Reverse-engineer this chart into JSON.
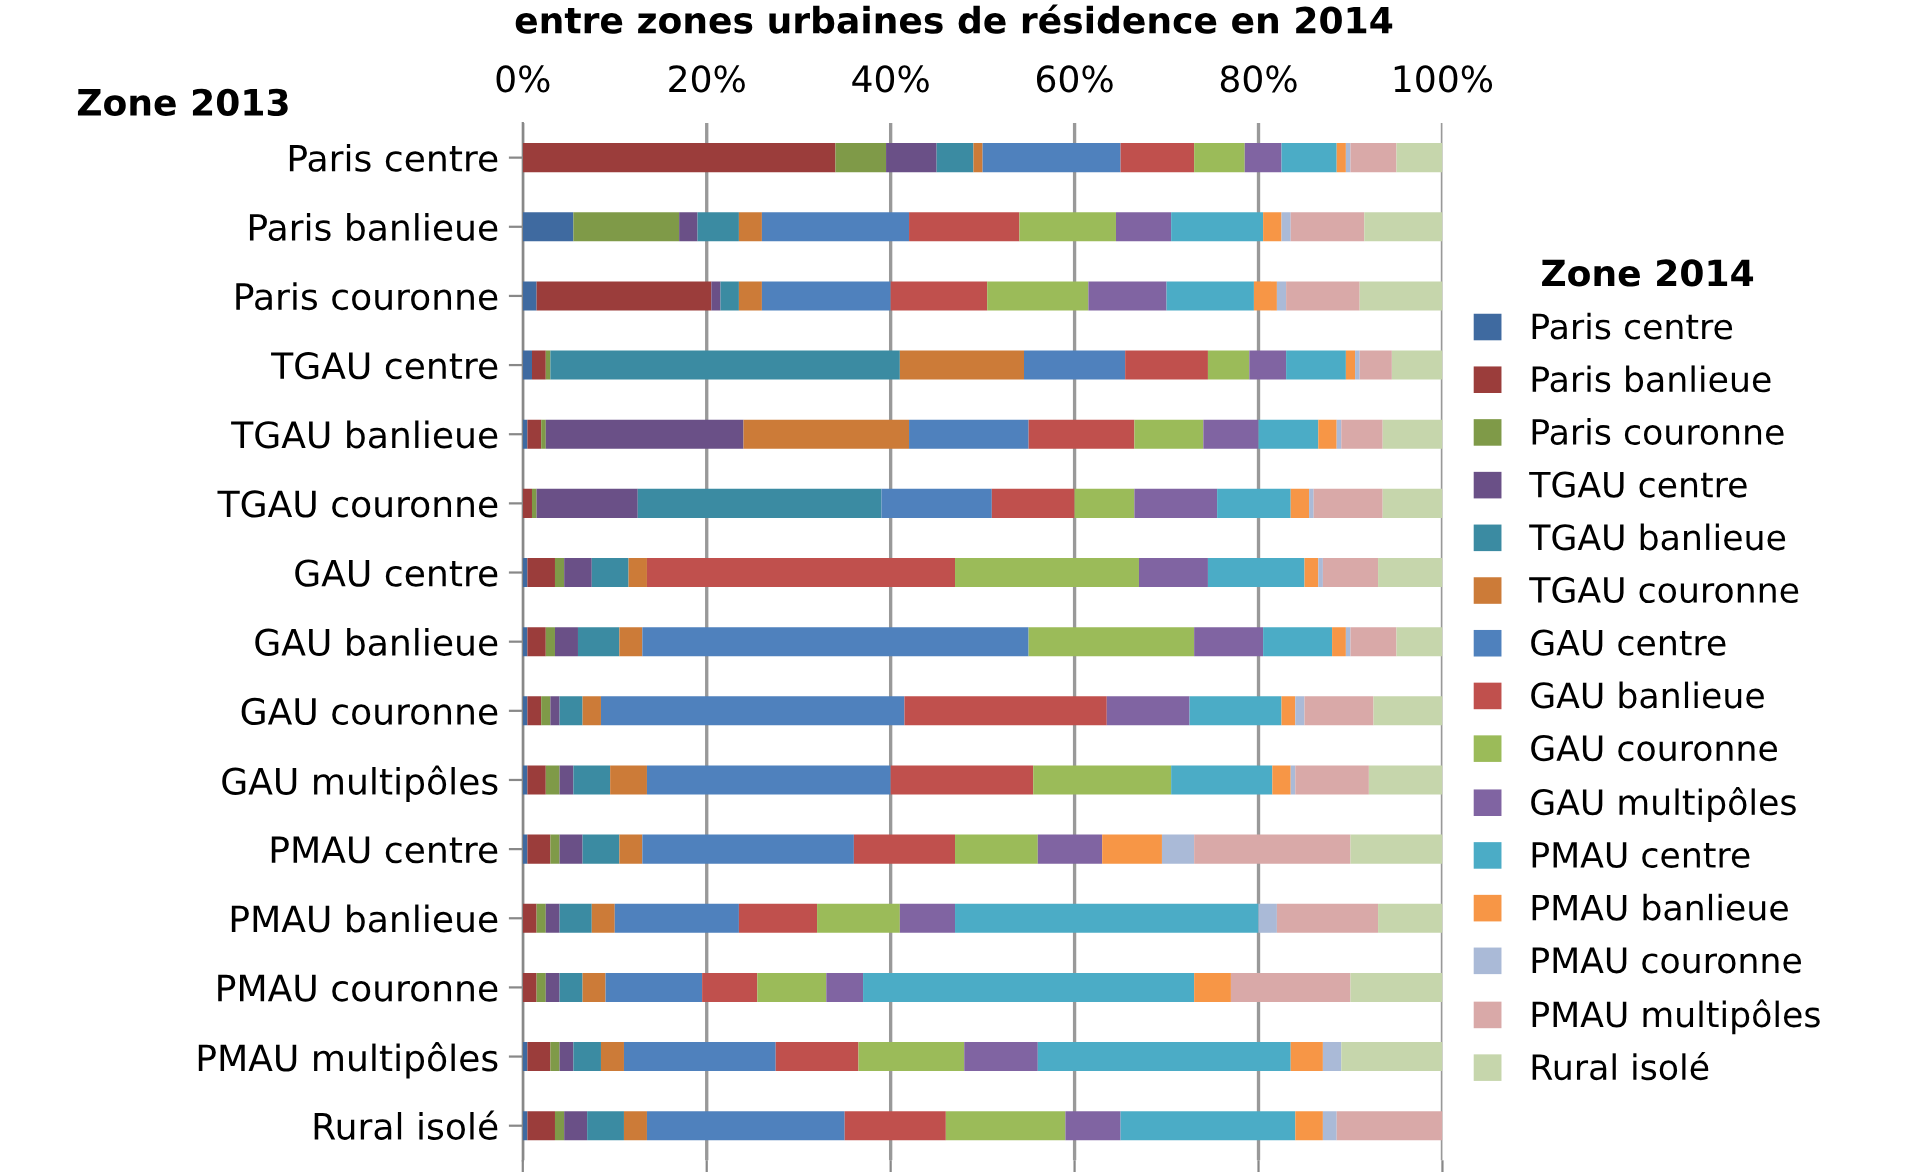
{
  "chart_data": {
    "type": "bar",
    "orientation": "horizontal",
    "stacked": true,
    "title": "entre zones urbaines de résidence en 2014",
    "ylabel": "Zone 2013",
    "legend_title": "Zone 2014",
    "legend": "right",
    "grid": "x",
    "categories": [
      "Paris centre",
      "Paris banlieue",
      "Paris couronne",
      "TGAU centre",
      "TGAU banlieue",
      "TGAU couronne",
      "GAU centre",
      "GAU banlieue",
      "GAU couronne",
      "GAU multipôles",
      "PMAU centre",
      "PMAU banlieue",
      "PMAU couronne",
      "PMAU multipôles",
      "Rural isolé"
    ],
    "xlim": [
      0,
      100
    ],
    "xticks": [
      {
        "value": 0,
        "label": "0%"
      },
      {
        "value": 20,
        "label": "20%"
      },
      {
        "value": 40,
        "label": "40%"
      },
      {
        "value": 60,
        "label": "60%"
      },
      {
        "value": 80,
        "label": "80%"
      },
      {
        "value": 100,
        "label": "100%"
      }
    ],
    "series": [
      {
        "name": "Paris centre",
        "color": "#3f6aa0",
        "values": [
          0,
          5.5,
          1.5,
          1,
          0.5,
          0,
          0.5,
          0.5,
          0.5,
          0.5,
          0.5,
          0,
          0,
          0.5,
          0.5
        ]
      },
      {
        "name": "Paris banlieue",
        "color": "#9b3d3b",
        "values": [
          34,
          0,
          19,
          1.5,
          1.5,
          1,
          3,
          2,
          1.5,
          2,
          2.5,
          1.5,
          1.5,
          2.5,
          3
        ]
      },
      {
        "name": "Paris couronne",
        "color": "#7f9a48",
        "values": [
          5.5,
          11.5,
          0,
          0.5,
          0.5,
          0.5,
          1,
          1,
          1,
          1.5,
          1,
          1,
          1,
          1,
          1
        ]
      },
      {
        "name": "TGAU centre",
        "color": "#6a5087",
        "values": [
          5.5,
          2,
          1,
          0,
          21.5,
          11,
          3,
          2.5,
          1,
          1.5,
          2.5,
          1.5,
          1.5,
          1.5,
          2.5
        ]
      },
      {
        "name": "TGAU banlieue",
        "color": "#3b8ba2",
        "values": [
          4,
          4.5,
          2,
          38,
          0,
          26.5,
          4,
          4.5,
          2.5,
          4,
          4,
          3.5,
          2.5,
          3,
          4
        ]
      },
      {
        "name": "TGAU couronne",
        "color": "#cc7b38",
        "values": [
          1,
          2.5,
          2.5,
          13.5,
          18,
          0,
          2,
          2.5,
          2,
          4,
          2.5,
          2.5,
          2.5,
          2.5,
          2.5
        ]
      },
      {
        "name": "GAU centre",
        "color": "#4f81bd",
        "values": [
          15,
          16,
          14,
          11,
          13,
          12,
          0,
          42,
          33,
          26.5,
          23,
          13.5,
          10.5,
          16.5,
          21.5
        ]
      },
      {
        "name": "GAU banlieue",
        "color": "#c0504d",
        "values": [
          8,
          12,
          10.5,
          9,
          11.5,
          9,
          33.5,
          0,
          22,
          15.5,
          11,
          8.5,
          6,
          9,
          11
        ]
      },
      {
        "name": "GAU couronne",
        "color": "#9bbb59",
        "values": [
          5.5,
          10.5,
          11,
          4.5,
          7.5,
          6.5,
          20,
          18,
          0,
          15,
          9,
          9,
          7.5,
          11.5,
          13
        ]
      },
      {
        "name": "GAU multipôles",
        "color": "#8064a2",
        "values": [
          4,
          6,
          8.5,
          4,
          6,
          9,
          7.5,
          7.5,
          9,
          0,
          7,
          6,
          4,
          8,
          6
        ]
      },
      {
        "name": "PMAU centre",
        "color": "#4bacc6",
        "values": [
          6,
          10,
          9.5,
          6.5,
          6.5,
          8,
          10.5,
          7.5,
          10,
          11,
          0,
          33,
          36,
          27.5,
          19
        ]
      },
      {
        "name": "PMAU banlieue",
        "color": "#f79646",
        "values": [
          1,
          2,
          2.5,
          1,
          2,
          2,
          1.5,
          1.5,
          1.5,
          2,
          6.5,
          0,
          4,
          3.5,
          3
        ]
      },
      {
        "name": "PMAU couronne",
        "color": "#aabad7",
        "values": [
          0.5,
          1,
          1,
          0.5,
          0.5,
          0.5,
          0.5,
          0.5,
          1,
          0.5,
          3.5,
          2,
          0,
          2,
          1.5
        ]
      },
      {
        "name": "PMAU multipôles",
        "color": "#d9a9a8",
        "values": [
          5,
          8,
          8,
          3.5,
          4.5,
          7.5,
          6,
          5,
          7.5,
          8,
          17,
          11,
          13,
          0,
          11.5
        ]
      },
      {
        "name": "Rural isolé",
        "color": "#c6d6ac",
        "values": [
          5,
          8.5,
          9,
          5.5,
          6.5,
          6.5,
          7,
          5,
          7.5,
          8,
          10,
          7,
          10,
          11,
          0
        ]
      }
    ]
  }
}
